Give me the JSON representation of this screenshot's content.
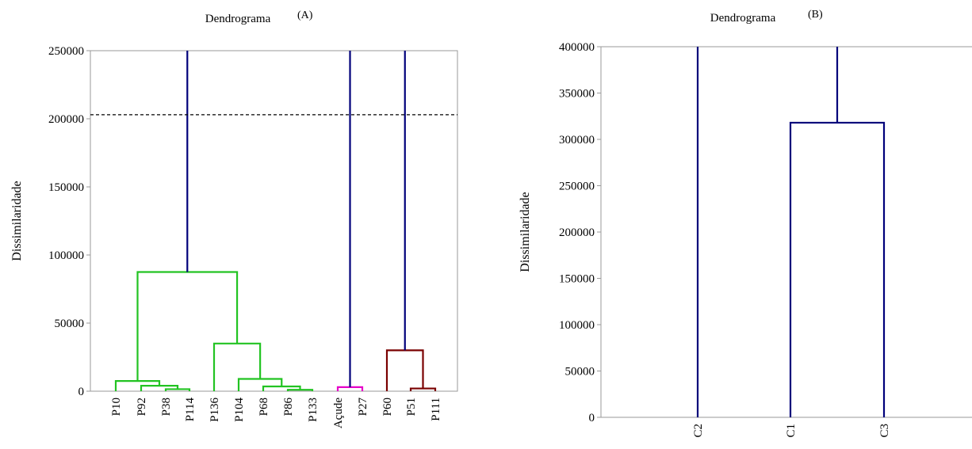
{
  "chart_data": [
    {
      "type": "dendrogram",
      "title": "Dendrograma",
      "panel_label": "(A)",
      "ylabel": "Dissimilaridade",
      "ylim": [
        0,
        250000
      ],
      "yticks": [
        0,
        50000,
        100000,
        150000,
        200000,
        250000
      ],
      "cut_line": 203000,
      "leaves": [
        "P10",
        "P92",
        "P38",
        "P114",
        "P136",
        "P104",
        "P68",
        "P86",
        "P133",
        "Açude",
        "P27",
        "P60",
        "P51",
        "P111"
      ],
      "colors": {
        "green": "#22c322",
        "magenta": "#e600c8",
        "maroon": "#7a0000",
        "navy": "#00007a"
      },
      "merges": [
        {
          "left": "leaf:2",
          "right": "leaf:3",
          "height": 1500,
          "color": "green"
        },
        {
          "left": "leaf:1",
          "right": "node:0",
          "height": 4000,
          "color": "green"
        },
        {
          "left": "leaf:0",
          "right": "node:1",
          "height": 7500,
          "color": "green"
        },
        {
          "left": "leaf:7",
          "right": "leaf:8",
          "height": 1000,
          "color": "green"
        },
        {
          "left": "leaf:6",
          "right": "node:3",
          "height": 3500,
          "color": "green"
        },
        {
          "left": "leaf:5",
          "right": "node:4",
          "height": 9000,
          "color": "green"
        },
        {
          "left": "leaf:4",
          "right": "node:5",
          "height": 35000,
          "color": "green"
        },
        {
          "left": "node:2",
          "right": "node:6",
          "height": 87500,
          "color": "green"
        },
        {
          "left": "leaf:9",
          "right": "leaf:10",
          "height": 3000,
          "color": "magenta"
        },
        {
          "left": "leaf:12",
          "right": "leaf:13",
          "height": 2000,
          "color": "maroon"
        },
        {
          "left": "leaf:11",
          "right": "node:9",
          "height": 30000,
          "color": "maroon"
        }
      ],
      "stems": [
        {
          "from": "node:7",
          "to": 250000,
          "color": "navy"
        },
        {
          "from": "node:8",
          "to": 250000,
          "color": "navy"
        },
        {
          "from": "node:10",
          "to": 250000,
          "color": "navy"
        }
      ]
    },
    {
      "type": "dendrogram",
      "title": "Dendrograma",
      "panel_label": "(B)",
      "ylabel": "Dissimilaridade",
      "ylim": [
        0,
        400000
      ],
      "yticks": [
        0,
        50000,
        100000,
        150000,
        200000,
        250000,
        300000,
        350000,
        400000
      ],
      "leaves": [
        "C2",
        "C1",
        "C3"
      ],
      "colors": {
        "navy": "#00007a"
      },
      "merges": [
        {
          "left": "leaf:1",
          "right": "leaf:2",
          "height": 318000,
          "color": "navy"
        }
      ],
      "stems": [
        {
          "from": "leaf:0",
          "to": 400000,
          "color": "navy"
        },
        {
          "from": "node:0",
          "to": 400000,
          "color": "navy"
        }
      ]
    }
  ]
}
